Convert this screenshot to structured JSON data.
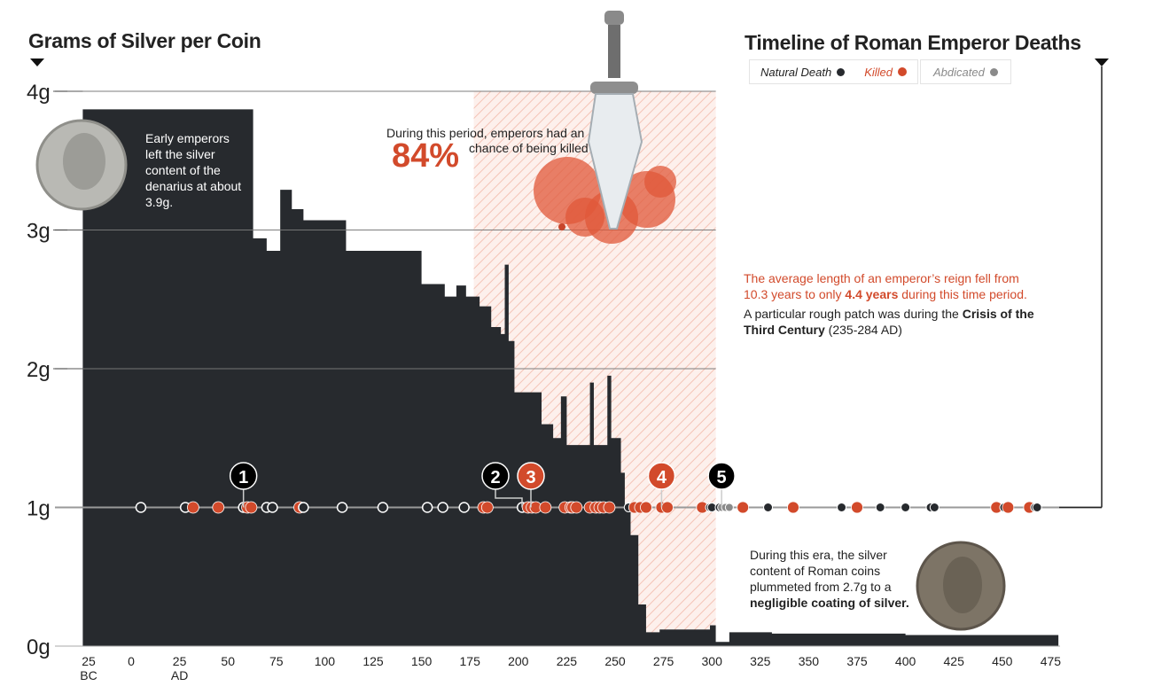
{
  "titles": {
    "left": "Grams of Silver per Coin",
    "right": "Timeline of Roman Emperor Deaths"
  },
  "legend": {
    "natural": "Natural Death",
    "killed": "Killed",
    "abdicated": "Abdicated"
  },
  "colors": {
    "silver_area": "#272a2e",
    "killed": "#d24a2b",
    "natural": "#272a2e",
    "abdicated": "#8a8a8a",
    "highlight_band": "#f5c9bd"
  },
  "annotations": {
    "early": "Early emperors left the silver content of the denarius at about 3.9g.",
    "period_pre": "During this period, emperors had an",
    "period_pct": "84%",
    "period_post": "chance of being killed",
    "reign_1": "The average length of an emperor’s reign fell from 10.3 years to only ",
    "reign_bold": "4.4 years",
    "reign_2": " during this time period.",
    "crisis_1": "A particular rough patch was during the ",
    "crisis_bold": "Crisis of the Third Century",
    "crisis_2": " (235-284 AD)",
    "era_1": "During this era, the silver content of Roman coins plummeted from 2.7g to a ",
    "era_bold": "negligible coating of silver."
  },
  "chart_data": {
    "type": "area",
    "xlabel": "",
    "ylabel": "",
    "xlim": [
      -25,
      480
    ],
    "ylim": [
      0,
      4
    ],
    "grid": true,
    "x_ticks": [
      {
        "value": -25,
        "label": "25",
        "sub": "BC"
      },
      {
        "value": 0,
        "label": "0",
        "sub": ""
      },
      {
        "value": 25,
        "label": "25",
        "sub": "AD"
      },
      {
        "value": 50,
        "label": "50",
        "sub": ""
      },
      {
        "value": 75,
        "label": "75",
        "sub": ""
      },
      {
        "value": 100,
        "label": "100",
        "sub": ""
      },
      {
        "value": 125,
        "label": "125",
        "sub": ""
      },
      {
        "value": 150,
        "label": "150",
        "sub": ""
      },
      {
        "value": 175,
        "label": "175",
        "sub": ""
      },
      {
        "value": 200,
        "label": "200",
        "sub": ""
      },
      {
        "value": 225,
        "label": "225",
        "sub": ""
      },
      {
        "value": 250,
        "label": "250",
        "sub": ""
      },
      {
        "value": 275,
        "label": "275",
        "sub": ""
      },
      {
        "value": 300,
        "label": "300",
        "sub": ""
      },
      {
        "value": 325,
        "label": "325",
        "sub": ""
      },
      {
        "value": 350,
        "label": "350",
        "sub": ""
      },
      {
        "value": 375,
        "label": "375",
        "sub": ""
      },
      {
        "value": 400,
        "label": "400",
        "sub": ""
      },
      {
        "value": 425,
        "label": "425",
        "sub": ""
      },
      {
        "value": 450,
        "label": "450",
        "sub": ""
      },
      {
        "value": 475,
        "label": "475",
        "sub": ""
      }
    ],
    "y_ticks": [
      {
        "value": 0,
        "label": "0g"
      },
      {
        "value": 1,
        "label": "1g"
      },
      {
        "value": 2,
        "label": "2g"
      },
      {
        "value": 3,
        "label": "3g"
      },
      {
        "value": 4,
        "label": "4g"
      }
    ],
    "highlight_period": [
      177,
      302
    ],
    "silver_steps": [
      [
        -25,
        3.87
      ],
      [
        63,
        2.94
      ],
      [
        70,
        2.85
      ],
      [
        77,
        3.29
      ],
      [
        83,
        3.15
      ],
      [
        89,
        3.07
      ],
      [
        111,
        2.85
      ],
      [
        150,
        2.61
      ],
      [
        162,
        2.52
      ],
      [
        168,
        2.6
      ],
      [
        173,
        2.52
      ],
      [
        180,
        2.45
      ],
      [
        186,
        2.3
      ],
      [
        191,
        2.25
      ],
      [
        193,
        2.75
      ],
      [
        195,
        2.2
      ],
      [
        198,
        1.83
      ],
      [
        212,
        1.6
      ],
      [
        218,
        1.5
      ],
      [
        222,
        1.8
      ],
      [
        225,
        1.45
      ],
      [
        237,
        1.9
      ],
      [
        239,
        1.45
      ],
      [
        246,
        1.95
      ],
      [
        248,
        1.5
      ],
      [
        253,
        1.25
      ],
      [
        255,
        1.0
      ],
      [
        258,
        0.8
      ],
      [
        262,
        0.3
      ],
      [
        266,
        0.1
      ],
      [
        273,
        0.12
      ],
      [
        285,
        0.12
      ],
      [
        299,
        0.15
      ],
      [
        302,
        0.03
      ],
      [
        309,
        0.1
      ],
      [
        331,
        0.09
      ],
      [
        400,
        0.08
      ],
      [
        479,
        0.06
      ]
    ],
    "deaths": [
      {
        "year": 5,
        "type": "natural"
      },
      {
        "year": 28,
        "type": "natural"
      },
      {
        "year": 32,
        "type": "killed"
      },
      {
        "year": 45,
        "type": "killed"
      },
      {
        "year": 58,
        "type": "natural"
      },
      {
        "year": 60,
        "type": "killed"
      },
      {
        "year": 62,
        "type": "killed"
      },
      {
        "year": 70,
        "type": "natural"
      },
      {
        "year": 73,
        "type": "natural"
      },
      {
        "year": 87,
        "type": "killed"
      },
      {
        "year": 89,
        "type": "natural"
      },
      {
        "year": 109,
        "type": "natural"
      },
      {
        "year": 130,
        "type": "natural"
      },
      {
        "year": 153,
        "type": "natural"
      },
      {
        "year": 161,
        "type": "natural"
      },
      {
        "year": 172,
        "type": "natural"
      },
      {
        "year": 182,
        "type": "killed"
      },
      {
        "year": 184,
        "type": "killed"
      },
      {
        "year": 202,
        "type": "natural"
      },
      {
        "year": 205,
        "type": "killed"
      },
      {
        "year": 207,
        "type": "killed"
      },
      {
        "year": 209,
        "type": "killed"
      },
      {
        "year": 214,
        "type": "killed"
      },
      {
        "year": 224,
        "type": "killed"
      },
      {
        "year": 227,
        "type": "killed"
      },
      {
        "year": 228,
        "type": "killed"
      },
      {
        "year": 230,
        "type": "killed"
      },
      {
        "year": 237,
        "type": "killed"
      },
      {
        "year": 240,
        "type": "killed"
      },
      {
        "year": 242,
        "type": "killed"
      },
      {
        "year": 244,
        "type": "killed"
      },
      {
        "year": 247,
        "type": "killed"
      },
      {
        "year": 257,
        "type": "natural"
      },
      {
        "year": 260,
        "type": "killed"
      },
      {
        "year": 263,
        "type": "killed"
      },
      {
        "year": 266,
        "type": "killed"
      },
      {
        "year": 274,
        "type": "killed"
      },
      {
        "year": 277,
        "type": "killed"
      },
      {
        "year": 295,
        "type": "killed"
      },
      {
        "year": 299,
        "type": "natural"
      },
      {
        "year": 300,
        "type": "natural"
      },
      {
        "year": 304,
        "type": "natural"
      },
      {
        "year": 305,
        "type": "abdicated"
      },
      {
        "year": 307,
        "type": "abdicated"
      },
      {
        "year": 309,
        "type": "abdicated"
      },
      {
        "year": 316,
        "type": "killed"
      },
      {
        "year": 329,
        "type": "natural"
      },
      {
        "year": 342,
        "type": "killed"
      },
      {
        "year": 367,
        "type": "natural"
      },
      {
        "year": 375,
        "type": "killed"
      },
      {
        "year": 387,
        "type": "natural"
      },
      {
        "year": 400,
        "type": "natural"
      },
      {
        "year": 413,
        "type": "natural"
      },
      {
        "year": 415,
        "type": "natural"
      },
      {
        "year": 447,
        "type": "killed"
      },
      {
        "year": 451,
        "type": "natural"
      },
      {
        "year": 453,
        "type": "killed"
      },
      {
        "year": 464,
        "type": "killed"
      },
      {
        "year": 467,
        "type": "natural"
      },
      {
        "year": 468,
        "type": "natural"
      }
    ],
    "markers": [
      {
        "label": "1",
        "year": 58,
        "type": "natural"
      },
      {
        "label": "2",
        "year": 202,
        "type": "natural"
      },
      {
        "label": "3",
        "year": 206,
        "type": "killed"
      },
      {
        "label": "4",
        "year": 274,
        "type": "killed"
      },
      {
        "label": "5",
        "year": 305,
        "type": "natural"
      }
    ]
  }
}
